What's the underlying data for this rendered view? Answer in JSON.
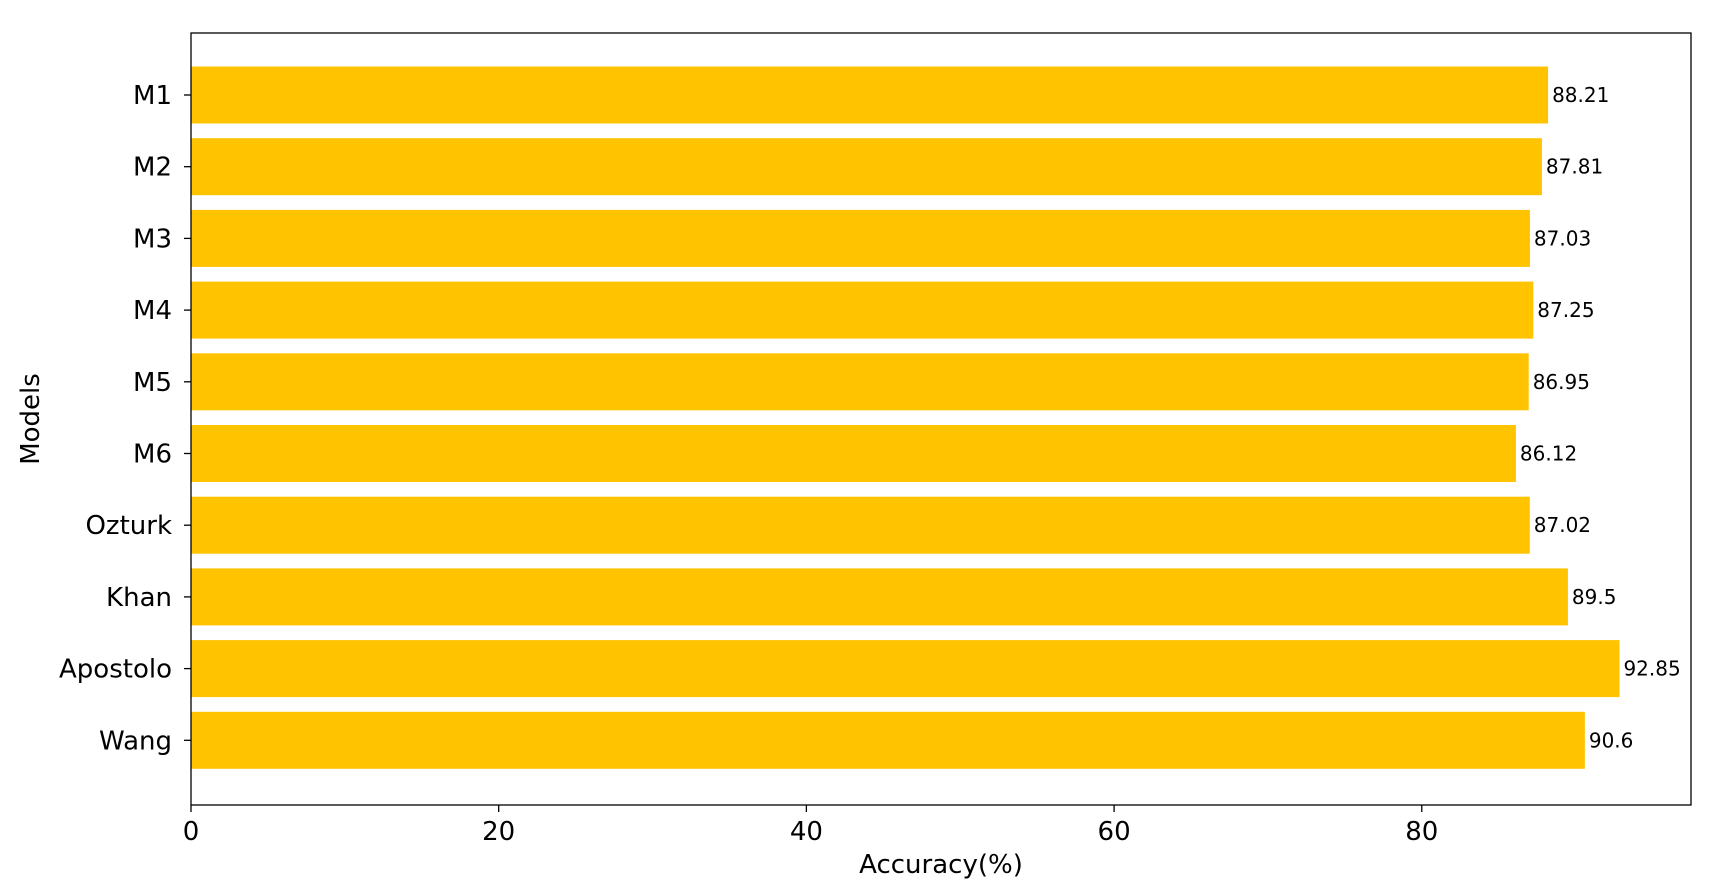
{
  "chart_data": {
    "type": "bar",
    "orientation": "horizontal",
    "title": "",
    "xlabel": "Accuracy(%)",
    "ylabel": "Models",
    "xlim": [
      0,
      97.5
    ],
    "xticks": [
      0,
      20,
      40,
      60,
      80
    ],
    "grid": false,
    "categories": [
      "M1",
      "M2",
      "M3",
      "M4",
      "M5",
      "M6",
      "Ozturk",
      "Khan",
      "Apostolo",
      "Wang"
    ],
    "values": [
      88.21,
      87.81,
      87.03,
      87.25,
      86.95,
      86.12,
      87.02,
      89.5,
      92.85,
      90.6
    ],
    "data_labels": [
      "88.21",
      "87.81",
      "87.03",
      "87.25",
      "86.95",
      "86.12",
      "87.02",
      "89.5",
      "92.85",
      "90.6"
    ],
    "bar_color": "#FFC300"
  }
}
